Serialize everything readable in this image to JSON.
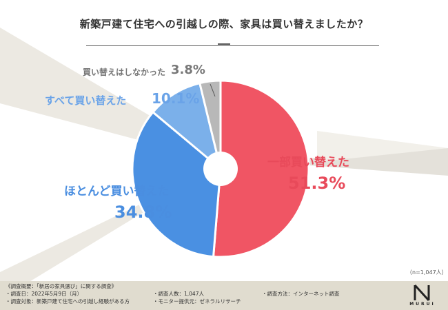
{
  "title": "新築戸建て住宅への引越しの際、家具は買い替えましたか？",
  "sample_size": "（n=1,047人）",
  "chart_data": {
    "type": "pie",
    "title": "新築戸建て住宅への引越しの際、家具は買い替えましたか？",
    "slices": [
      {
        "label": "一部買い替えた",
        "value": 51.3,
        "value_text": "51.3%",
        "color": "#f05564"
      },
      {
        "label": "ほとんど買い替えた",
        "value": 34.8,
        "value_text": "34.8%",
        "color": "#4a90e2"
      },
      {
        "label": "すべて買い替えた",
        "value": 10.1,
        "value_text": "10.1%",
        "color": "#7bb0ea"
      },
      {
        "label": "買い替えはしなかった",
        "value": 3.8,
        "value_text": "3.8%",
        "color": "#b8b8b8"
      }
    ],
    "legend": "none"
  },
  "footer": {
    "overview": "《調査概要：「新居の家具選び」に関する調査》",
    "date": "・調査日：2022年5月9日（月）",
    "count": "・調査人数：1,047人",
    "method": "・調査方法：インターネット調査",
    "target": "・調査対象：新築戸建て住宅への引越し経験がある方",
    "provider": "・モニター提供元：ゼネラルリサーチ"
  },
  "logo": {
    "text": "MURUI"
  }
}
